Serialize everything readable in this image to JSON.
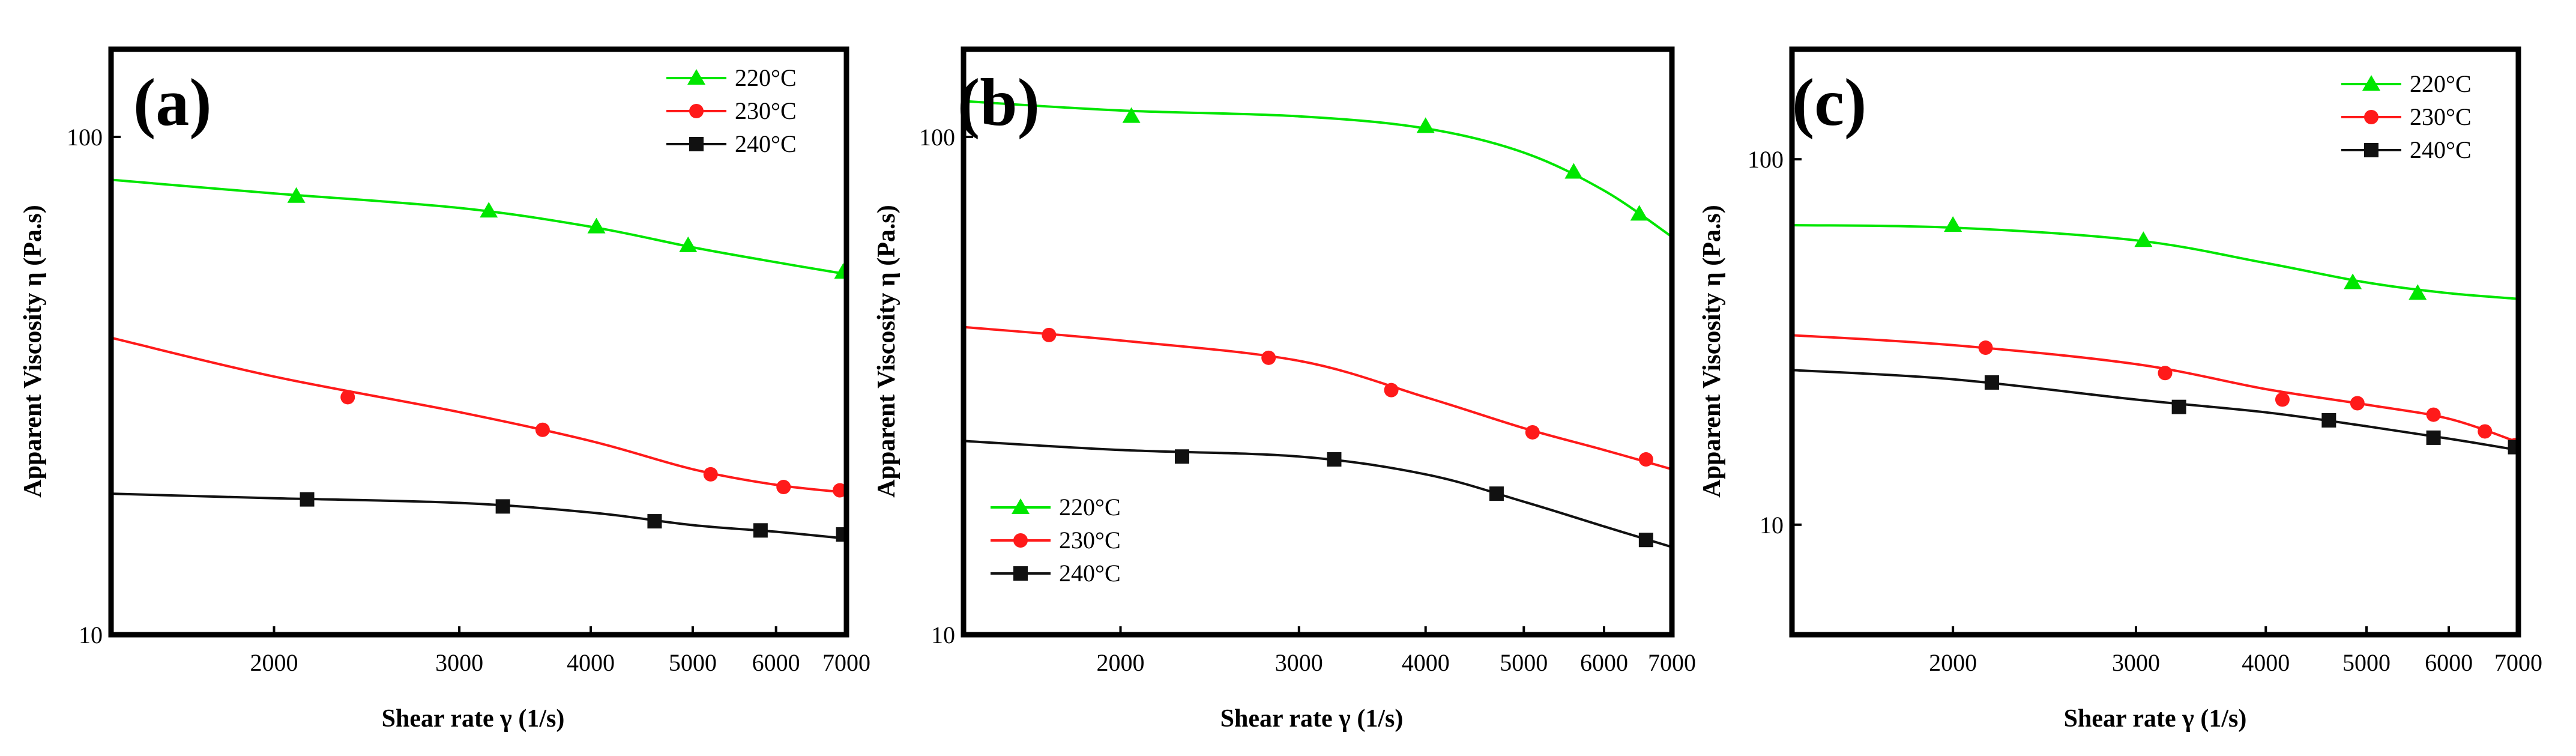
{
  "figure": {
    "panels": [
      "(a)",
      "(b)",
      "(c)"
    ]
  },
  "chart_data": [
    {
      "type": "line",
      "panel_label": "(a)",
      "xlabel": "Shear rate γ (1/s)",
      "ylabel": "Apparent Viscosity η (Pa.s)",
      "xscale": "log",
      "yscale": "log",
      "xlim": [
        1400,
        7000
      ],
      "ylim": [
        10,
        150
      ],
      "x_tick_labels": [
        "2000",
        "3000",
        "4000",
        "5000",
        "6000",
        "7000"
      ],
      "x_ticks": [
        2000,
        3000,
        4000,
        5000,
        6000,
        7000
      ],
      "y_tick_labels": [
        "10",
        "100"
      ],
      "y_ticks": [
        10,
        100
      ],
      "legend_position": "top-right",
      "series": [
        {
          "name": "220°C",
          "color": "#00e600",
          "marker": "triangle",
          "points": [
            [
              2100,
              76
            ],
            [
              3200,
              71
            ],
            [
              4050,
              66
            ],
            [
              4950,
              60.5
            ],
            [
              6950,
              53.5
            ]
          ],
          "curve": [
            [
              1400,
              82
            ],
            [
              2000,
              77
            ],
            [
              3000,
              72
            ],
            [
              4000,
              66
            ],
            [
              5000,
              60
            ],
            [
              6000,
              56
            ],
            [
              7000,
              53
            ]
          ]
        },
        {
          "name": "230°C",
          "color": "#ff1a1a",
          "marker": "circle",
          "points": [
            [
              2350,
              30
            ],
            [
              3600,
              25.8
            ],
            [
              5200,
              21
            ],
            [
              6100,
              19.8
            ],
            [
              6900,
              19.5
            ]
          ],
          "curve": [
            [
              1400,
              39.5
            ],
            [
              2000,
              33
            ],
            [
              3000,
              28
            ],
            [
              4000,
              24.5
            ],
            [
              5000,
              21.5
            ],
            [
              6000,
              20
            ],
            [
              7000,
              19.3
            ]
          ]
        },
        {
          "name": "240°C",
          "color": "#111111",
          "marker": "square",
          "points": [
            [
              2150,
              18.7
            ],
            [
              3300,
              18.1
            ],
            [
              4600,
              16.9
            ],
            [
              5800,
              16.2
            ],
            [
              6950,
              15.9
            ]
          ],
          "curve": [
            [
              1400,
              19.2
            ],
            [
              2000,
              18.8
            ],
            [
              3000,
              18.4
            ],
            [
              4000,
              17.6
            ],
            [
              5000,
              16.6
            ],
            [
              6000,
              16.1
            ],
            [
              7000,
              15.6
            ]
          ]
        }
      ]
    },
    {
      "type": "line",
      "panel_label": "(b)",
      "xlabel": "Shear rate γ (1/s)",
      "ylabel": "Apparent Viscosity η (Pa.s)",
      "xscale": "log",
      "yscale": "log",
      "xlim": [
        1400,
        7000
      ],
      "ylim": [
        10,
        150
      ],
      "x_tick_labels": [
        "2000",
        "3000",
        "4000",
        "5000",
        "6000",
        "7000"
      ],
      "x_ticks": [
        2000,
        3000,
        4000,
        5000,
        6000,
        7000
      ],
      "y_tick_labels": [
        "10",
        "100"
      ],
      "y_ticks": [
        10,
        100
      ],
      "legend_position": "bottom-left",
      "series": [
        {
          "name": "220°C",
          "color": "#00e600",
          "marker": "triangle",
          "points": [
            [
              2050,
              110
            ],
            [
              4000,
              105
            ],
            [
              5600,
              85
            ],
            [
              6500,
              70
            ]
          ],
          "curve": [
            [
              1400,
              118
            ],
            [
              2000,
              113
            ],
            [
              3000,
              110
            ],
            [
              4000,
              104
            ],
            [
              5000,
              93
            ],
            [
              6000,
              78
            ],
            [
              7000,
              63
            ]
          ]
        },
        {
          "name": "230°C",
          "color": "#ff1a1a",
          "marker": "circle",
          "points": [
            [
              1700,
              40
            ],
            [
              2800,
              36
            ],
            [
              3700,
              31
            ],
            [
              5100,
              25.5
            ],
            [
              6600,
              22.5
            ]
          ],
          "curve": [
            [
              1400,
              41.5
            ],
            [
              2000,
              39
            ],
            [
              3000,
              35.5
            ],
            [
              4000,
              30
            ],
            [
              5000,
              26
            ],
            [
              6000,
              23.5
            ],
            [
              7000,
              21.5
            ]
          ]
        },
        {
          "name": "240°C",
          "color": "#111111",
          "marker": "square",
          "points": [
            [
              2300,
              22.8
            ],
            [
              3250,
              22.5
            ],
            [
              4700,
              19.2
            ],
            [
              6600,
              15.5
            ]
          ],
          "curve": [
            [
              1400,
              24.5
            ],
            [
              2000,
              23.5
            ],
            [
              3000,
              22.8
            ],
            [
              4000,
              21
            ],
            [
              5000,
              18.5
            ],
            [
              6000,
              16.5
            ],
            [
              7000,
              15
            ]
          ]
        }
      ]
    },
    {
      "type": "line",
      "panel_label": "(c)",
      "xlabel": "Shear rate γ (1/s)",
      "ylabel": "Apparent Viscosity η (Pa.s)",
      "xscale": "log",
      "yscale": "log",
      "xlim": [
        1400,
        7000
      ],
      "ylim": [
        5,
        200
      ],
      "x_tick_labels": [
        "2000",
        "3000",
        "4000",
        "5000",
        "6000",
        "7000"
      ],
      "x_ticks": [
        2000,
        3000,
        4000,
        5000,
        6000,
        7000
      ],
      "y_tick_labels": [
        "10",
        "100"
      ],
      "y_ticks": [
        10,
        100
      ],
      "legend_position": "top-right",
      "series": [
        {
          "name": "220°C",
          "color": "#00e600",
          "marker": "triangle",
          "points": [
            [
              2000,
              66
            ],
            [
              3050,
              60
            ],
            [
              4850,
              46
            ],
            [
              5600,
              43
            ]
          ],
          "curve": [
            [
              1400,
              66
            ],
            [
              2000,
              65
            ],
            [
              3000,
              60
            ],
            [
              4000,
              52
            ],
            [
              5000,
              46
            ],
            [
              6000,
              43
            ],
            [
              7000,
              41.5
            ]
          ]
        },
        {
          "name": "230°C",
          "color": "#ff1a1a",
          "marker": "circle",
          "points": [
            [
              2150,
              30.5
            ],
            [
              3200,
              26
            ],
            [
              4150,
              22
            ],
            [
              4900,
              21.5
            ],
            [
              5800,
              20
            ],
            [
              6500,
              18
            ],
            [
              6950,
              16.5
            ]
          ],
          "curve": [
            [
              1400,
              33
            ],
            [
              2000,
              31
            ],
            [
              3000,
              27.5
            ],
            [
              4000,
              23.5
            ],
            [
              5000,
              21.3
            ],
            [
              6000,
              19.5
            ],
            [
              7000,
              16.8
            ]
          ]
        },
        {
          "name": "240°C",
          "color": "#111111",
          "marker": "square",
          "points": [
            [
              2180,
              24.5
            ],
            [
              3300,
              21
            ],
            [
              4600,
              19.3
            ],
            [
              5800,
              17.3
            ],
            [
              6950,
              16.3
            ]
          ],
          "curve": [
            [
              1400,
              26.5
            ],
            [
              2000,
              25
            ],
            [
              3000,
              22
            ],
            [
              4000,
              20.3
            ],
            [
              5000,
              18.6
            ],
            [
              6000,
              17.2
            ],
            [
              7000,
              16
            ]
          ]
        }
      ]
    }
  ]
}
